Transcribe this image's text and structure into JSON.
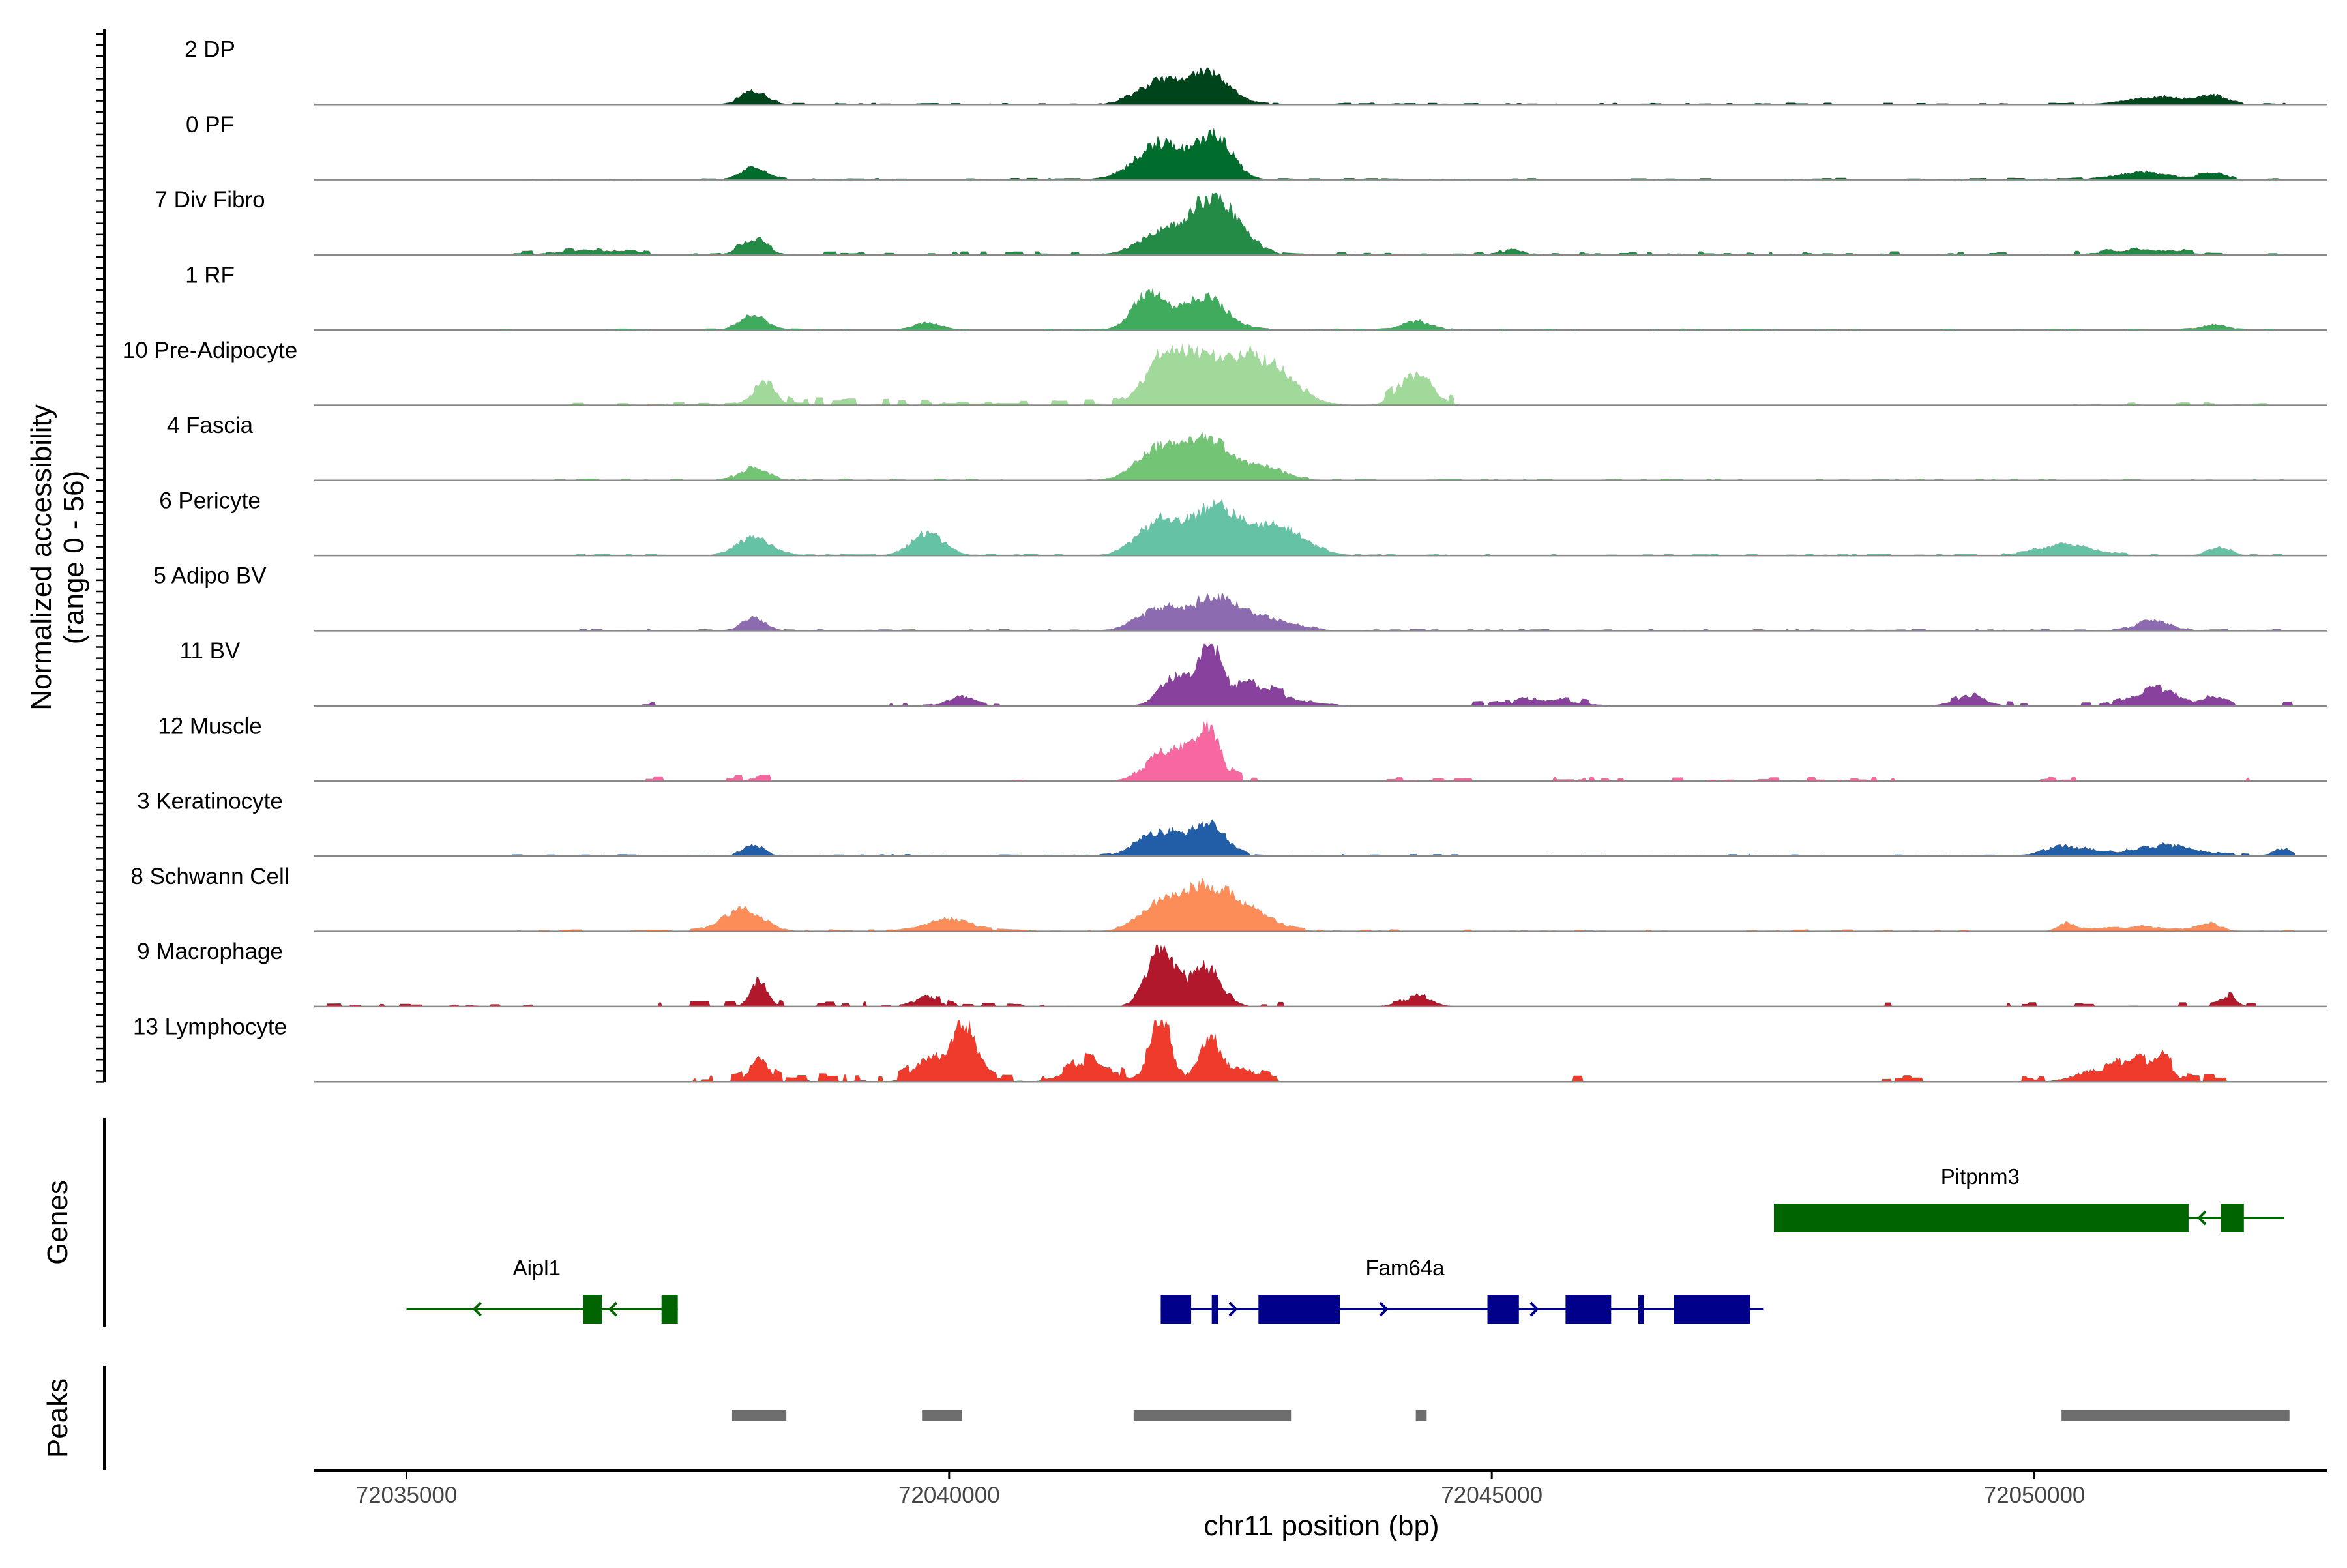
{
  "chart_data": {
    "type": "area",
    "title": "",
    "xlabel": "chr11 position (bp)",
    "ylabel": "Normalized accessibility",
    "ylabel_sub": "(range 0 - 56)",
    "ylim": [
      0,
      56
    ],
    "xlim": [
      72034150,
      72052700
    ],
    "x_ticks": [
      72035000,
      72040000,
      72045000,
      72050000
    ],
    "x_tick_labels": [
      "72035000",
      "72040000",
      "72045000",
      "72050000"
    ],
    "signal_range": [
      72034150,
      72052400
    ],
    "panel_titles": {
      "genes": "Genes",
      "peaks": "Peaks"
    },
    "tracks": [
      {
        "name": "2 DP",
        "color": "#00441B",
        "baseline": 0.2,
        "peaks": [
          [
            72038200,
            120,
            12
          ],
          [
            72041950,
            200,
            22
          ],
          [
            72042400,
            180,
            30
          ],
          [
            72051150,
            280,
            7
          ],
          [
            72051650,
            120,
            8
          ]
        ],
        "noise": [
          [
            72037600,
            72052300,
            1.5
          ],
          [
            72034800,
            72037600,
            0.6
          ]
        ]
      },
      {
        "name": "0 PF",
        "color": "#006D2C",
        "baseline": 0.2,
        "peaks": [
          [
            72038200,
            120,
            12
          ],
          [
            72041950,
            220,
            36
          ],
          [
            72042450,
            160,
            42
          ],
          [
            72051000,
            250,
            7
          ],
          [
            72051650,
            120,
            6
          ]
        ],
        "noise": [
          [
            72037600,
            72052300,
            1.5
          ],
          [
            72034800,
            72037600,
            0.6
          ]
        ]
      },
      {
        "name": "7 Div Fibro",
        "color": "#238B45",
        "baseline": 0.2,
        "peaks": [
          [
            72038200,
            120,
            14
          ],
          [
            72041950,
            200,
            20
          ],
          [
            72042450,
            220,
            56
          ],
          [
            72036700,
            300,
            4
          ],
          [
            72045200,
            90,
            5
          ],
          [
            72051000,
            300,
            5
          ]
        ],
        "noise": [
          [
            72035900,
            72052300,
            3.0
          ]
        ]
      },
      {
        "name": "1 RF",
        "color": "#41AB5D",
        "baseline": 0.2,
        "peaks": [
          [
            72038200,
            120,
            14
          ],
          [
            72041850,
            150,
            36
          ],
          [
            72042350,
            200,
            32
          ],
          [
            72039800,
            130,
            7
          ],
          [
            72044300,
            130,
            8
          ],
          [
            72051650,
            120,
            5
          ]
        ],
        "noise": [
          [
            72035800,
            72052300,
            1.2
          ]
        ]
      },
      {
        "name": "10 Pre-Adipocyte",
        "color": "#A1D99B",
        "baseline": 0.0,
        "peaks": [
          [
            72038300,
            100,
            22
          ],
          [
            72042200,
            220,
            44
          ],
          [
            72042800,
            300,
            48
          ],
          [
            72044300,
            150,
            30
          ],
          [
            72041900,
            150,
            24
          ]
        ],
        "noise": [
          [
            72037800,
            72043400,
            6
          ],
          [
            72044000,
            72044700,
            8
          ],
          [
            72036400,
            72040600,
            3
          ],
          [
            72050300,
            72052300,
            3
          ]
        ]
      },
      {
        "name": "4 Fascia",
        "color": "#74C476",
        "baseline": 0.2,
        "peaks": [
          [
            72038200,
            120,
            12
          ],
          [
            72041950,
            200,
            32
          ],
          [
            72042400,
            200,
            38
          ],
          [
            72042900,
            200,
            12
          ]
        ],
        "noise": [
          [
            72036000,
            72052300,
            1.5
          ]
        ]
      },
      {
        "name": "6 Pericyte",
        "color": "#66C2A4",
        "baseline": 0.2,
        "peaks": [
          [
            72038200,
            150,
            18
          ],
          [
            72039800,
            150,
            22
          ],
          [
            72041950,
            200,
            34
          ],
          [
            72042450,
            200,
            44
          ],
          [
            72043000,
            250,
            30
          ],
          [
            72050300,
            250,
            10
          ],
          [
            72051700,
            100,
            8
          ]
        ],
        "noise": [
          [
            72036500,
            72052300,
            1.5
          ]
        ]
      },
      {
        "name": "5 Adipo BV",
        "color": "#8C6BB1",
        "baseline": 0.2,
        "peaks": [
          [
            72038200,
            110,
            12
          ],
          [
            72041950,
            200,
            22
          ],
          [
            72042450,
            200,
            30
          ],
          [
            72042900,
            250,
            12
          ],
          [
            72051100,
            150,
            10
          ]
        ],
        "noise": [
          [
            72036500,
            72052300,
            1.5
          ]
        ]
      },
      {
        "name": "11 BV",
        "color": "#88419D",
        "baseline": 0.0,
        "peaks": [
          [
            72042400,
            90,
            56
          ],
          [
            72042100,
            150,
            28
          ],
          [
            72042700,
            200,
            16
          ],
          [
            72043000,
            250,
            8
          ],
          [
            72040100,
            120,
            8
          ],
          [
            72051100,
            200,
            14
          ],
          [
            72051650,
            100,
            10
          ],
          [
            72049400,
            150,
            9
          ],
          [
            72045500,
            300,
            5
          ]
        ],
        "noise": [
          [
            72037100,
            72037300,
            4
          ],
          [
            72039400,
            72040500,
            3
          ],
          [
            72041800,
            72043600,
            6
          ],
          [
            72044800,
            72045900,
            4
          ],
          [
            72049200,
            72049900,
            4
          ],
          [
            72050400,
            72051800,
            6
          ],
          [
            72052000,
            72052300,
            4
          ]
        ]
      },
      {
        "name": "12 Muscle",
        "color": "#F768A1",
        "baseline": 0.0,
        "peaks": [
          [
            72042400,
            100,
            50
          ],
          [
            72042150,
            120,
            28
          ],
          [
            72041900,
            150,
            18
          ]
        ],
        "noise": [
          [
            72037000,
            72037300,
            5
          ],
          [
            72037900,
            72038400,
            6
          ],
          [
            72040600,
            72041100,
            5
          ],
          [
            72041750,
            72042800,
            10
          ],
          [
            72044000,
            72044800,
            4
          ],
          [
            72045300,
            72046300,
            4
          ],
          [
            72046600,
            72048800,
            4
          ],
          [
            72049700,
            72050400,
            4
          ],
          [
            72051900,
            72052100,
            4
          ]
        ]
      },
      {
        "name": "3 Keratinocyte",
        "color": "#225EA8",
        "baseline": 0.2,
        "peaks": [
          [
            72038200,
            100,
            10
          ],
          [
            72041950,
            200,
            24
          ],
          [
            72042400,
            150,
            30
          ],
          [
            72050300,
            200,
            9
          ],
          [
            72051200,
            300,
            10
          ],
          [
            72052300,
            80,
            7
          ]
        ],
        "noise": [
          [
            72035700,
            72052300,
            1.8
          ]
        ]
      },
      {
        "name": "8 Schwann Cell",
        "color": "#FC8D59",
        "baseline": 0.2,
        "peaks": [
          [
            72038100,
            180,
            22
          ],
          [
            72040000,
            200,
            12
          ],
          [
            72041950,
            200,
            22
          ],
          [
            72042400,
            250,
            42
          ],
          [
            72042850,
            200,
            12
          ],
          [
            72050300,
            80,
            8
          ],
          [
            72051600,
            100,
            8
          ],
          [
            72051000,
            300,
            4
          ]
        ],
        "noise": [
          [
            72036000,
            72052300,
            1.8
          ]
        ]
      },
      {
        "name": "9 Macrophage",
        "color": "#B2182B",
        "baseline": 0.0,
        "peaks": [
          [
            72041950,
            120,
            56
          ],
          [
            72042350,
            150,
            38
          ],
          [
            72038250,
            80,
            22
          ],
          [
            72039800,
            100,
            10
          ],
          [
            72044300,
            150,
            8
          ],
          [
            72051800,
            60,
            10
          ]
        ],
        "noise": [
          [
            72034200,
            72036300,
            3
          ],
          [
            72037300,
            72043400,
            5
          ],
          [
            72043900,
            72044500,
            4
          ],
          [
            72048600,
            72048800,
            4
          ],
          [
            72049600,
            72052000,
            4
          ]
        ]
      },
      {
        "name": "13 Lymphocyte",
        "color": "#EF3B2C",
        "baseline": 0.0,
        "peaks": [
          [
            72040150,
            100,
            56
          ],
          [
            72041950,
            100,
            56
          ],
          [
            72042400,
            100,
            40
          ],
          [
            72039850,
            150,
            24
          ],
          [
            72038250,
            80,
            24
          ],
          [
            72041300,
            200,
            18
          ],
          [
            72042700,
            150,
            12
          ],
          [
            72051000,
            150,
            16
          ],
          [
            72050600,
            200,
            12
          ],
          [
            72051200,
            80,
            14
          ]
        ],
        "noise": [
          [
            72037600,
            72043000,
            8
          ],
          [
            72045600,
            72045900,
            6
          ],
          [
            72048500,
            72049000,
            6
          ],
          [
            72049700,
            72050100,
            6
          ],
          [
            72050500,
            72051700,
            8
          ],
          [
            72051900,
            72052000,
            6
          ]
        ]
      }
    ],
    "genes": [
      {
        "name": "Aipl1",
        "strand": "-",
        "color": "#006400",
        "start": 72035000,
        "end": 72037500,
        "row": 2,
        "exons": [
          [
            72036630,
            72036800
          ],
          [
            72037350,
            72037500
          ]
        ]
      },
      {
        "name": "Fam64a",
        "strand": "+",
        "color": "#00008B",
        "start": 72041950,
        "end": 72047500,
        "row": 2,
        "exons": [
          [
            72041950,
            72042230
          ],
          [
            72042420,
            72042480
          ],
          [
            72042850,
            72043600
          ],
          [
            72044960,
            72045250
          ],
          [
            72045680,
            72046100
          ],
          [
            72046350,
            72046400
          ],
          [
            72046680,
            72047380
          ]
        ]
      },
      {
        "name": "Pitpnm3",
        "strand": "-",
        "color": "#006400",
        "start": 72047600,
        "end": 72052300,
        "row": 1,
        "exons": [
          [
            72047600,
            72051420
          ],
          [
            72051720,
            72051930
          ]
        ]
      }
    ],
    "peaks": [
      [
        72038000,
        72038500
      ],
      [
        72039750,
        72040120
      ],
      [
        72041700,
        72043150
      ],
      [
        72044300,
        72044400
      ],
      [
        72050250,
        72052350
      ]
    ]
  }
}
